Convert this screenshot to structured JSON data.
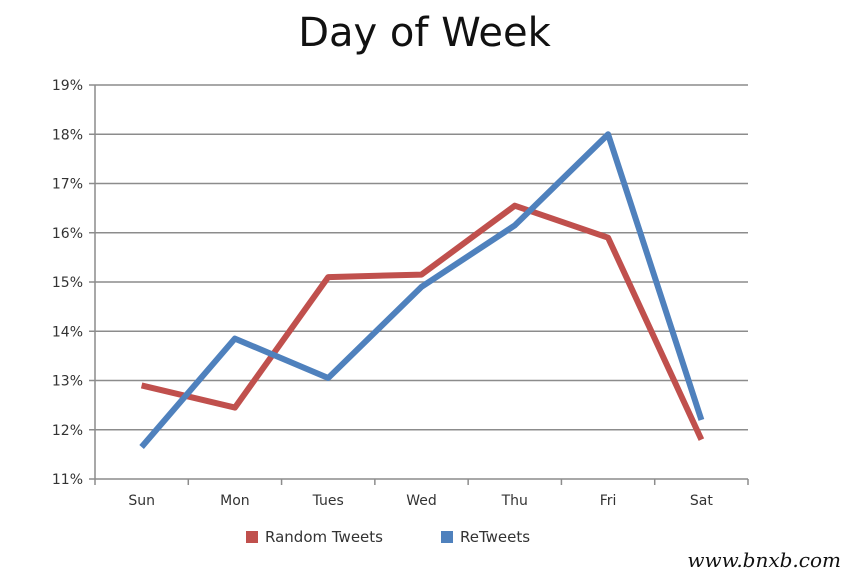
{
  "chart_data": {
    "type": "line",
    "title": "Day of Week",
    "xlabel": "",
    "ylabel": "",
    "categories": [
      "Sun",
      "Mon",
      "Tues",
      "Wed",
      "Thu",
      "Fri",
      "Sat"
    ],
    "ylim": [
      11,
      19
    ],
    "yticks": [
      "11%",
      "12%",
      "13%",
      "14%",
      "15%",
      "16%",
      "17%",
      "18%",
      "19%"
    ],
    "grid": true,
    "legend_position": "bottom",
    "series": [
      {
        "name": "Random Tweets",
        "color": "#c0504d",
        "values": [
          12.9,
          12.45,
          15.1,
          15.15,
          16.55,
          15.9,
          11.8
        ]
      },
      {
        "name": "ReTweets",
        "color": "#4f81bd",
        "values": [
          11.65,
          13.85,
          13.05,
          14.9,
          16.15,
          18.0,
          12.2
        ]
      }
    ]
  },
  "watermark": "www.bnxb.com"
}
